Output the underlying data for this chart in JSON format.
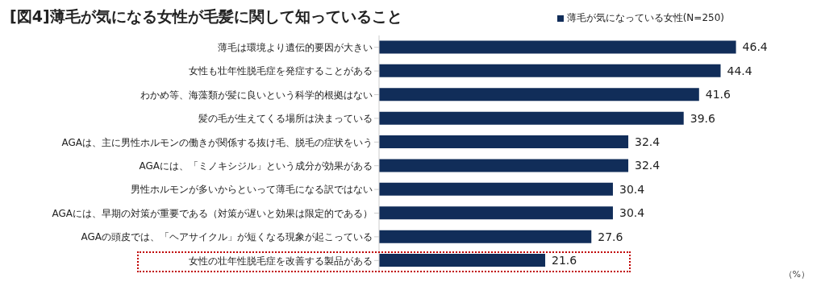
{
  "chart_data": {
    "type": "bar",
    "orientation": "horizontal",
    "title": "[図4]薄毛が気になる女性が毛髪に関して知っていること",
    "categories": [
      "薄毛は環境より遺伝的要因が大きい",
      "女性も壮年性脱毛症を発症することがある",
      "わかめ等、海藻類が髪に良いという科学的根拠はない",
      "髪の毛が生えてくる場所は決まっている",
      "AGAは、主に男性ホルモンの働きが関係する抜け毛、脱毛の症状をいう",
      "AGAには、「ミノキシジル」という成分が効果がある",
      "男性ホルモンが多いからといって薄毛になる訳ではない",
      "AGAには、早期の対策が重要である（対策が遅いと効果は限定的である）",
      "AGAの頭皮では、「ヘアサイクル」が短くなる現象が起こっている",
      "女性の壮年性脱毛症を改善する製品がある"
    ],
    "series": [
      {
        "name": "薄毛が気になっている女性(N=250)",
        "color": "#112d59",
        "values": [
          46.4,
          44.4,
          41.6,
          39.6,
          32.4,
          32.4,
          30.4,
          30.4,
          27.6,
          21.6
        ]
      }
    ],
    "data_labels": true,
    "legend": "top right",
    "annotations": [
      "（%）"
    ]
  }
}
